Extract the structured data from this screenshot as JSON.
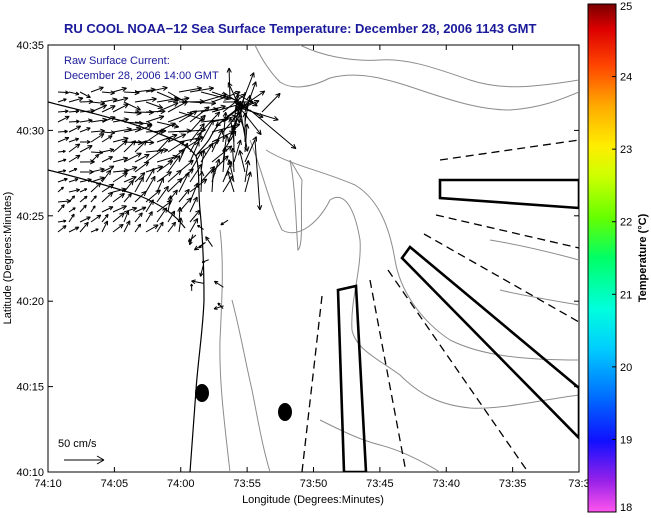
{
  "title": "RU COOL  NOAA−12  Sea Surface Temperature:  December 28, 2006 1143 GMT",
  "overlay": {
    "line1": "Raw Surface Current:",
    "line2": "December 28, 2006 14:00 GMT"
  },
  "axes": {
    "xlabel": "Longitude (Degrees:Minutes)",
    "ylabel": "Latitude (Degrees:Minutes)",
    "x_ticks": [
      "74:10",
      "74:05",
      "74:00",
      "73:55",
      "73:50",
      "73:45",
      "73:40",
      "73:35",
      "73:3"
    ],
    "y_ticks": [
      "40:35",
      "40:30",
      "40:25",
      "40:20",
      "40:15",
      "40:10"
    ]
  },
  "colorbar": {
    "label": "Temperature (°C)",
    "ticks": [
      "25",
      "24",
      "23",
      "22",
      "21",
      "20",
      "19",
      "18"
    ],
    "range": [
      18,
      25
    ],
    "colors": [
      "#ff44dd",
      "#7a22e6",
      "#0000ff",
      "#0077ff",
      "#00e0ff",
      "#00ff88",
      "#44ff00",
      "#ccff00",
      "#ffff00",
      "#ffaa00",
      "#ff4400",
      "#ff0000",
      "#7a0000"
    ]
  },
  "scale_bar": {
    "label": "50 cm/s"
  },
  "colors": {
    "title": "#1a1a9a",
    "coast": "#000000",
    "contour": "#808080",
    "arrow": "#000000"
  }
}
